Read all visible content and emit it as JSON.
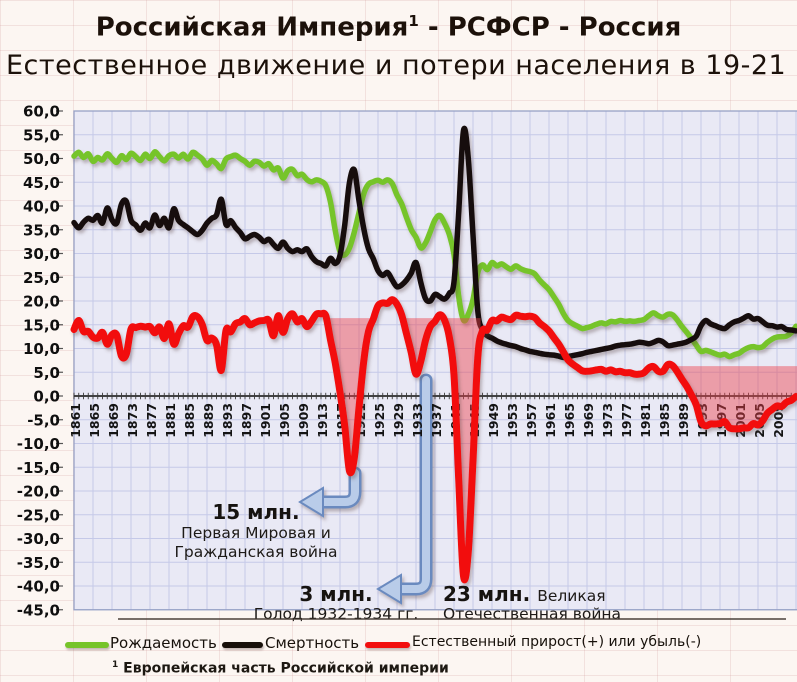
{
  "title": {
    "prefix": "Российская Империя",
    "sup": "1",
    "suffix": " - РСФСР - Россия"
  },
  "subtitle": "Естественное движение и потери населения в 19-21",
  "legend": {
    "items": [
      {
        "label": "Рождаемость",
        "color": "#76c42a"
      },
      {
        "label": "Смертность",
        "color": "#17100a"
      },
      {
        "label": "Естественный прирост(+) или убыль(-)",
        "color": "#f20f0f"
      }
    ]
  },
  "footnote": {
    "sup": "1",
    "text": "Европейская часть Российской империи"
  },
  "annotations": [
    {
      "value": "15 млн.",
      "line1": "Первая Мировая и",
      "line2": "Гражданская война"
    },
    {
      "value": "3 млн.",
      "line1": "Голод 1932-1934 гг."
    },
    {
      "value": "23 млн.",
      "inline": "Великая",
      "line1": "Отечественная  война"
    }
  ],
  "chart_data": {
    "type": "line",
    "x_start": 1861,
    "x_end": 2012,
    "x_tick_labels": [
      1861,
      1865,
      1869,
      1873,
      1877,
      1881,
      1885,
      1889,
      1893,
      1897,
      1901,
      1905,
      1909,
      1913,
      1917,
      1921,
      1925,
      1929,
      1933,
      1937,
      1941,
      1945,
      1949,
      1953,
      1957,
      1961,
      1965,
      1969,
      1973,
      1977,
      1981,
      1985,
      1989,
      1993,
      1997,
      2001,
      2005,
      2009
    ],
    "y_ticks": [
      60,
      55,
      50,
      45,
      40,
      35,
      30,
      25,
      20,
      15,
      10,
      5,
      0,
      -5,
      -10,
      -15,
      -20,
      -25,
      -30,
      -35,
      -40,
      -45
    ],
    "y_tick_labels": [
      "60,0",
      "55,0",
      "50,0",
      "45,0",
      "40,0",
      "35,0",
      "30,0",
      "25,0",
      "20,0",
      "15,0",
      "10,0",
      "5,0",
      "0,0",
      "-5,0",
      "-10,0",
      "-15,0",
      "-20,0",
      "-25,0",
      "-30,0",
      "-35,0",
      "-40,0",
      "-45,0"
    ],
    "ylim": [
      -45,
      60
    ],
    "series": [
      {
        "name": "Рождаемость",
        "color": "#76c42a",
        "width": 5.5,
        "values": [
          50.5,
          51.3,
          50.2,
          51.0,
          49.4,
          50.2,
          49.7,
          51.0,
          50.0,
          49.2,
          50.6,
          49.8,
          51.1,
          50.4,
          49.6,
          50.9,
          50.0,
          51.4,
          50.4,
          49.5,
          50.6,
          50.9,
          50.1,
          50.9,
          49.9,
          51.3,
          50.7,
          49.9,
          48.6,
          49.6,
          48.9,
          47.9,
          49.9,
          50.4,
          50.7,
          50.0,
          49.4,
          48.6,
          49.4,
          49.2,
          48.4,
          48.9,
          47.6,
          48.0,
          45.9,
          47.4,
          47.7,
          46.4,
          46.7,
          45.6,
          45.1,
          45.5,
          45.2,
          44.3,
          40.8,
          34.8,
          30.4,
          29.7,
          31.2,
          34.5,
          38.6,
          42.6,
          44.6,
          45.1,
          45.4,
          45.0,
          45.5,
          44.7,
          42.3,
          40.4,
          37.6,
          35.0,
          33.4,
          31.2,
          32.2,
          34.6,
          37.1,
          38.0,
          36.4,
          34.0,
          29.8,
          20.8,
          16.0,
          17.2,
          20.3,
          26.0,
          27.6,
          26.6,
          28.1,
          27.4,
          27.8,
          27.2,
          26.7,
          27.4,
          26.8,
          26.4,
          26.2,
          25.7,
          24.4,
          23.4,
          22.4,
          20.9,
          19.4,
          17.4,
          15.9,
          15.2,
          14.7,
          14.2,
          14.4,
          14.7,
          15.1,
          15.4,
          15.2,
          15.7,
          15.6,
          15.9,
          15.7,
          15.8,
          15.7,
          15.9,
          16.1,
          16.9,
          17.5,
          16.9,
          16.6,
          17.2,
          17.1,
          16.0,
          14.6,
          13.4,
          12.1,
          10.7,
          9.4,
          9.6,
          9.3,
          8.9,
          8.6,
          8.8,
          8.3,
          8.7,
          9.0,
          9.7,
          10.2,
          10.4,
          10.2,
          10.4,
          11.3,
          12.0,
          12.4,
          12.5,
          12.6,
          13.3
        ]
      },
      {
        "name": "Смертность",
        "color": "#17100a",
        "width": 5.5,
        "values": [
          36.5,
          35.4,
          36.6,
          37.4,
          37.0,
          38.0,
          36.4,
          39.6,
          37.1,
          36.4,
          40.4,
          41.0,
          37.0,
          36.0,
          34.9,
          36.4,
          35.4,
          38.1,
          35.9,
          37.4,
          35.4,
          39.4,
          37.0,
          36.1,
          35.4,
          34.6,
          34.0,
          34.9,
          36.4,
          37.4,
          38.1,
          41.4,
          36.1,
          36.9,
          35.5,
          34.4,
          33.1,
          33.6,
          34.0,
          33.4,
          32.5,
          33.0,
          31.9,
          31.1,
          32.4,
          31.1,
          30.4,
          30.8,
          30.4,
          31.0,
          29.4,
          28.3,
          27.9,
          27.4,
          29.0,
          27.9,
          29.6,
          36.1,
          45.0,
          47.6,
          41.1,
          35.2,
          31.0,
          28.9,
          26.4,
          25.4,
          26.0,
          24.4,
          23.0,
          23.4,
          24.4,
          25.9,
          28.1,
          23.9,
          20.5,
          20.0,
          21.4,
          20.9,
          20.4,
          21.6,
          24.0,
          39.0,
          55.9,
          50.0,
          33.9,
          17.9,
          13.9,
          12.7,
          12.2,
          11.6,
          11.2,
          10.9,
          10.6,
          10.4,
          10.0,
          9.7,
          9.4,
          9.2,
          9.0,
          8.8,
          8.7,
          8.6,
          8.4,
          8.1,
          8.3,
          8.5,
          8.7,
          8.9,
          9.2,
          9.4,
          9.6,
          9.8,
          10.0,
          10.2,
          10.5,
          10.7,
          10.8,
          10.9,
          11.1,
          11.3,
          11.2,
          11.0,
          11.3,
          11.7,
          11.4,
          10.6,
          10.7,
          10.9,
          11.1,
          11.4,
          11.9,
          12.6,
          14.8,
          15.9,
          15.2,
          14.8,
          14.4,
          14.2,
          15.0,
          15.6,
          15.9,
          16.4,
          16.9,
          16.2,
          16.3,
          15.6,
          14.9,
          14.8,
          14.5,
          14.6,
          14.0,
          13.9
        ]
      },
      {
        "name": "Естественный прирост(+) или убыль(-)",
        "color": "#f20f0f",
        "width": 7,
        "values": [
          14.0,
          15.9,
          13.6,
          13.6,
          12.4,
          12.2,
          13.4,
          10.9,
          12.9,
          12.8,
          8.4,
          8.8,
          14.1,
          14.4,
          14.7,
          14.5,
          14.6,
          13.3,
          14.5,
          12.1,
          15.2,
          10.9,
          13.1,
          14.8,
          14.5,
          16.7,
          16.7,
          15.0,
          11.7,
          12.2,
          10.8,
          5.4,
          13.8,
          13.5,
          15.2,
          15.6,
          16.3,
          15.0,
          15.4,
          15.8,
          15.9,
          15.9,
          12.7,
          16.9,
          13.4,
          16.3,
          17.3,
          15.6,
          16.3,
          14.6,
          15.7,
          17.2,
          17.3,
          16.9,
          11.8,
          6.9,
          0.8,
          -6.4,
          -15.8,
          -13.1,
          -2.5,
          7.4,
          13.6,
          16.2,
          19.0,
          19.6,
          19.5,
          20.3,
          19.3,
          17.0,
          13.1,
          9.1,
          4.6,
          7.3,
          11.7,
          14.6,
          15.7,
          17.1,
          16.0,
          12.4,
          4.4,
          -18.0,
          -37.9,
          -32.8,
          -13.6,
          8.1,
          13.7,
          13.9,
          15.9,
          15.8,
          16.6,
          16.3,
          16.1,
          17.0,
          16.8,
          16.7,
          16.8,
          16.5,
          15.4,
          14.6,
          13.7,
          12.3,
          11.0,
          9.3,
          7.6,
          6.7,
          6.0,
          5.3,
          5.2,
          5.3,
          5.5,
          5.6,
          5.2,
          5.5,
          5.1,
          5.2,
          4.9,
          4.9,
          4.6,
          4.6,
          4.9,
          5.9,
          6.2,
          5.2,
          5.2,
          6.6,
          6.4,
          5.1,
          3.5,
          2.0,
          0.2,
          -1.9,
          -5.4,
          -6.3,
          -5.9,
          -5.9,
          -5.8,
          -5.4,
          -6.7,
          -6.9,
          -6.9,
          -6.7,
          -6.7,
          -5.8,
          -6.1,
          -5.2,
          -3.6,
          -2.8,
          -2.1,
          -2.2,
          -1.3,
          -0.9
        ]
      }
    ],
    "loss_fills": [
      {
        "from": 1913.4,
        "to": 1946.6,
        "cap": 16.4
      },
      {
        "from": 1986.4,
        "to": 2013.5,
        "cap": 6.3
      }
    ],
    "fill_color": "rgba(238,64,76,0.45)",
    "grid": {
      "plot_bg": "#e9e9f5",
      "line": "#c5c9e8",
      "border": "#97a2c6",
      "axis": "#2b2b2b"
    },
    "arrow_colors": {
      "fill": "#b9cce9",
      "edge": "#6a8abf"
    }
  }
}
